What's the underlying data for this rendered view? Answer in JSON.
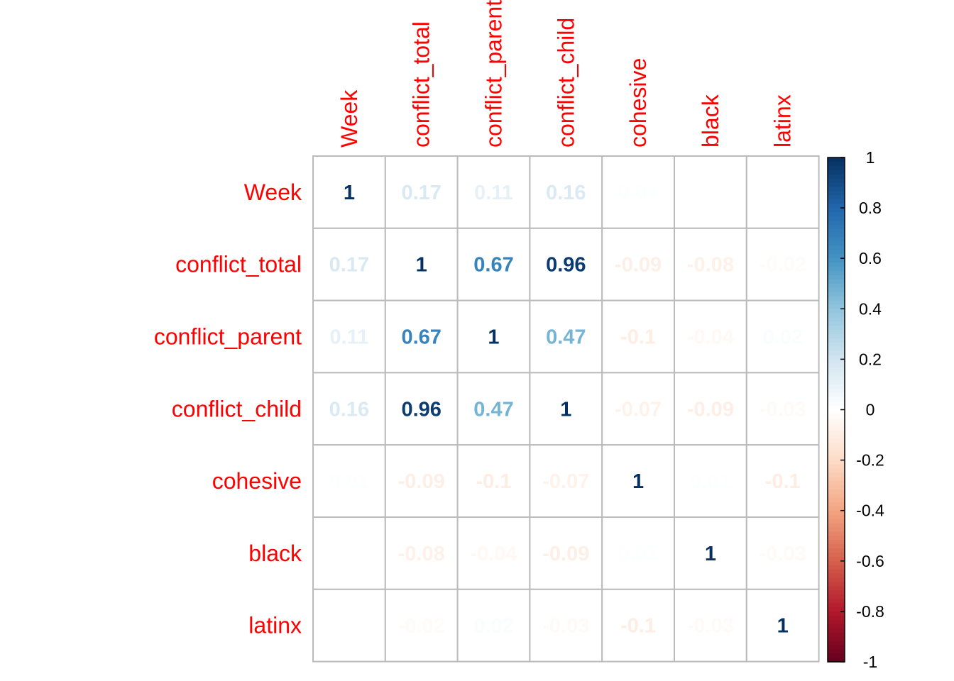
{
  "chart_data": {
    "type": "heatmap",
    "variables": [
      "Week",
      "conflict_total",
      "conflict_parent",
      "conflict_child",
      "cohesive",
      "black",
      "latinx"
    ],
    "matrix": [
      [
        1,
        0.17,
        0.11,
        0.16,
        0.01,
        0,
        0
      ],
      [
        0.17,
        1,
        0.67,
        0.96,
        -0.09,
        -0.08,
        -0.02
      ],
      [
        0.11,
        0.67,
        1,
        0.47,
        -0.1,
        -0.04,
        0.02
      ],
      [
        0.16,
        0.96,
        0.47,
        1,
        -0.07,
        -0.09,
        -0.03
      ],
      [
        0.01,
        -0.09,
        -0.1,
        -0.07,
        1,
        0.01,
        -0.1
      ],
      [
        0,
        -0.08,
        -0.04,
        -0.09,
        0.01,
        1,
        -0.03
      ],
      [
        0,
        -0.02,
        0.02,
        -0.03,
        -0.1,
        -0.03,
        1
      ]
    ],
    "labels": [
      [
        "1",
        "0.17",
        "0.11",
        "0.16",
        "0.01",
        "0",
        "0"
      ],
      [
        "0.17",
        "1",
        "0.67",
        "0.96",
        "-0.09",
        "-0.08",
        "-0.02"
      ],
      [
        "0.11",
        "0.67",
        "1",
        "0.47",
        "-0.1",
        "-0.04",
        "0.02"
      ],
      [
        "0.16",
        "0.96",
        "0.47",
        "1",
        "-0.07",
        "-0.09",
        "-0.03"
      ],
      [
        "0.01",
        "-0.09",
        "-0.1",
        "-0.07",
        "1",
        "0.01",
        "-0.1"
      ],
      [
        "0",
        "-0.08",
        "-0.04",
        "-0.09",
        "0.01",
        "1",
        "-0.03"
      ],
      [
        "0",
        "-0.02",
        "0.02",
        "-0.03",
        "-0.1",
        "-0.03",
        "1"
      ]
    ],
    "colorbar": {
      "range": [
        -1,
        1
      ],
      "ticks": [
        "1",
        "0.8",
        "0.6",
        "0.4",
        "0.2",
        "0",
        "-0.2",
        "-0.4",
        "-0.6",
        "-0.8",
        "-1"
      ]
    },
    "colors": {
      "palette": [
        "#67001F",
        "#B2182B",
        "#D6604D",
        "#F4A582",
        "#FDDBC7",
        "#FFFFFF",
        "#D1E5F0",
        "#92C5DE",
        "#4393C3",
        "#2166AC",
        "#053061"
      ],
      "label_color": "#ff0000",
      "grid_color": "#bbbbbb"
    }
  }
}
